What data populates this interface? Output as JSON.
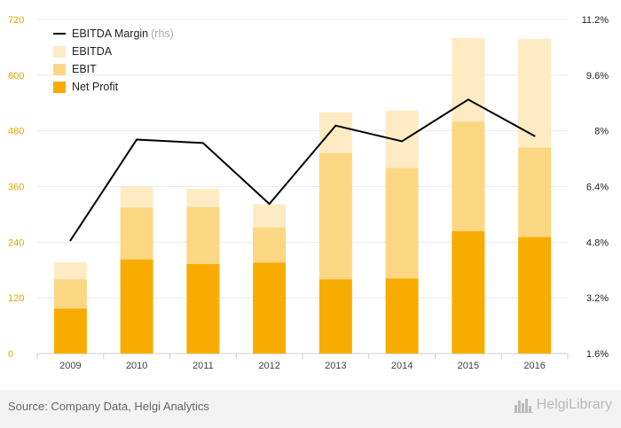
{
  "chart_data": {
    "type": "bar",
    "categories": [
      "2009",
      "2010",
      "2011",
      "2012",
      "2013",
      "2014",
      "2015",
      "2016"
    ],
    "series": [
      {
        "name": "Net Profit",
        "kind": "bar",
        "color": "#f8ac00",
        "values": [
          97,
          203,
          193,
          196,
          160,
          162,
          264,
          251
        ]
      },
      {
        "name": "EBIT",
        "kind": "bar",
        "color": "#fcd783",
        "values": [
          160,
          315,
          316,
          272,
          432,
          400,
          500,
          444
        ]
      },
      {
        "name": "EBITDA",
        "kind": "bar",
        "color": "#feebc4",
        "values": [
          197,
          360,
          355,
          322,
          520,
          524,
          680,
          678
        ]
      },
      {
        "name": "EBITDA Margin",
        "suffix": "(rhs)",
        "kind": "line",
        "axis": "right",
        "color": "#000000",
        "values": [
          4.85,
          7.75,
          7.65,
          5.9,
          8.15,
          7.7,
          8.9,
          7.85
        ]
      }
    ],
    "left_axis": {
      "ticks": [
        "0",
        "120",
        "240",
        "360",
        "480",
        "600",
        "720"
      ],
      "range": [
        0,
        720
      ],
      "color": "#e2a700"
    },
    "right_axis": {
      "ticks": [
        "1.6%",
        "3.2%",
        "4.8%",
        "6.4%",
        "8%",
        "9.6%",
        "11.2%"
      ],
      "range": [
        1.6,
        11.2
      ],
      "color": "#222222"
    },
    "legend_position": "top-left",
    "grid": "horizontal"
  },
  "legend": {
    "margin_label": "EBITDA Margin",
    "margin_suffix": "(rhs)",
    "ebitda_label": "EBITDA",
    "ebit_label": "EBIT",
    "net_label": "Net Profit"
  },
  "footer": {
    "source": "Source: Company Data, Helgi Analytics",
    "brand": "HelgiLibrary",
    "brand_icon": "city-skyline-icon"
  }
}
